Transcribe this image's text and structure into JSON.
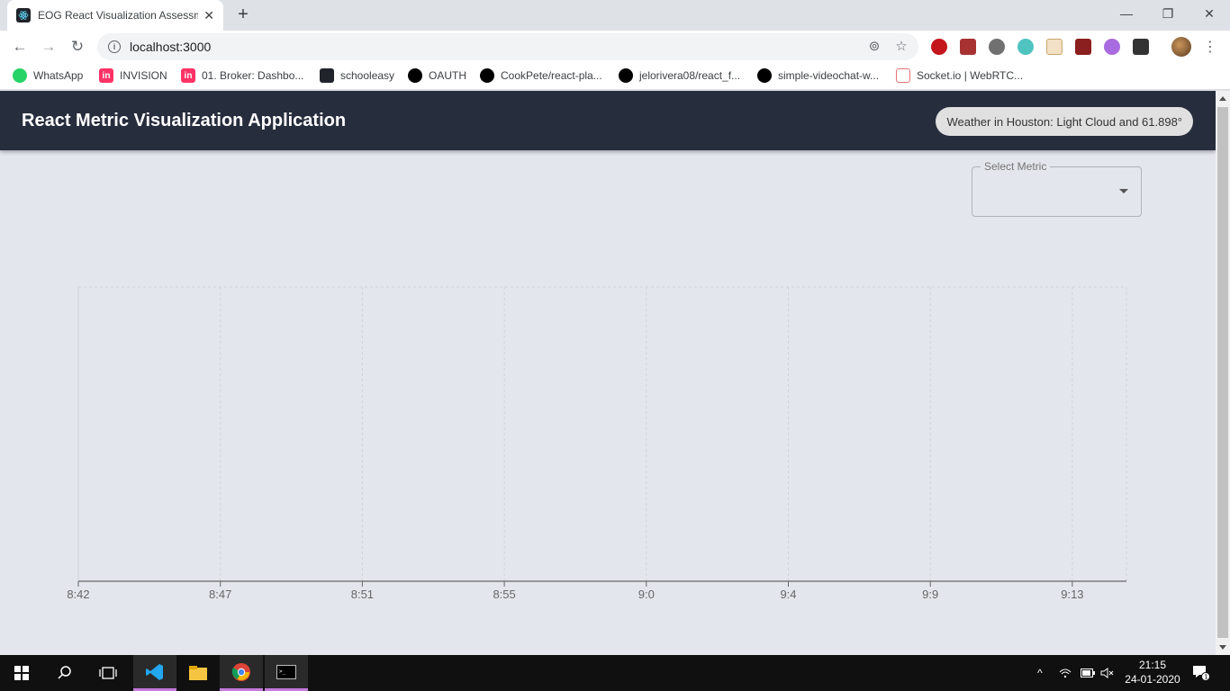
{
  "browser": {
    "tab_title": "EOG React Visualization Assessm",
    "url": "localhost:3000",
    "bookmarks": [
      "WhatsApp",
      "INVISION",
      "01. Broker: Dashbo...",
      "schooleasy",
      "OAUTH",
      "CookPete/react-pla...",
      "jelorivera08/react_f...",
      "simple-videochat-w...",
      "Socket.io | WebRTC..."
    ]
  },
  "app": {
    "title": "React Metric Visualization Application",
    "weather_chip": "Weather in Houston: Light Cloud and 61.898°",
    "select_label": "Select Metric",
    "select_value": ""
  },
  "chart_data": {
    "type": "line",
    "x": [
      "8:42",
      "8:47",
      "8:51",
      "8:55",
      "9:0",
      "9:4",
      "9:9",
      "9:13"
    ],
    "series": [],
    "grid": true
  },
  "taskbar": {
    "time": "21:15",
    "date": "24-01-2020",
    "notification_count": "1"
  },
  "colors": {
    "appbar": "#262d3c",
    "page_bg": "#e3e6ed"
  }
}
